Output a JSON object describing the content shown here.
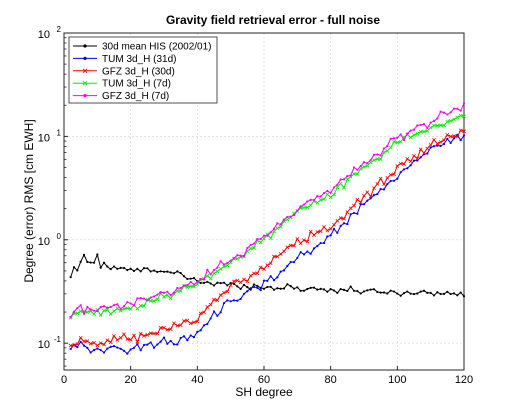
{
  "chart_data": {
    "type": "line",
    "title": "Gravity field retrieval error - full noise",
    "xlabel": "SH degree",
    "ylabel": "Degree (error) RMS [cm EWH]",
    "xlim": [
      0,
      120
    ],
    "ylim": [
      0.055,
      100
    ],
    "yscale": "log",
    "grid": true,
    "legend_position": "top-left",
    "x_ticks": [
      "0",
      "20",
      "40",
      "60",
      "80",
      "100",
      "120"
    ],
    "y_ticks": [
      {
        "base": "10",
        "exp": "-1",
        "value": 0.1
      },
      {
        "base": "10",
        "exp": "0",
        "value": 1
      },
      {
        "base": "10",
        "exp": "1",
        "value": 10
      },
      {
        "base": "10",
        "exp": "2",
        "value": 100
      }
    ],
    "series": [
      {
        "name": "30d mean HIS (2002/01)",
        "color": "#000000",
        "marker": "dot",
        "anchors": [
          [
            2,
            0.42
          ],
          [
            3,
            0.55
          ],
          [
            4,
            0.48
          ],
          [
            5,
            0.62
          ],
          [
            6,
            0.7
          ],
          [
            7,
            0.6
          ],
          [
            8,
            0.65
          ],
          [
            9,
            0.6
          ],
          [
            10,
            0.72
          ],
          [
            11,
            0.55
          ],
          [
            12,
            0.6
          ],
          [
            14,
            0.52
          ],
          [
            16,
            0.55
          ],
          [
            18,
            0.52
          ],
          [
            20,
            0.5
          ],
          [
            25,
            0.52
          ],
          [
            30,
            0.5
          ],
          [
            35,
            0.45
          ],
          [
            40,
            0.4
          ],
          [
            45,
            0.38
          ],
          [
            50,
            0.37
          ],
          [
            55,
            0.36
          ],
          [
            60,
            0.35
          ],
          [
            70,
            0.34
          ],
          [
            80,
            0.33
          ],
          [
            90,
            0.32
          ],
          [
            100,
            0.31
          ],
          [
            110,
            0.31
          ],
          [
            120,
            0.29
          ]
        ],
        "jitter": 0.025
      },
      {
        "name": "TUM 3d_H (31d)",
        "color": "#0000ff",
        "marker": "dot",
        "anchors": [
          [
            2,
            0.09
          ],
          [
            5,
            0.1
          ],
          [
            10,
            0.085
          ],
          [
            20,
            0.09
          ],
          [
            30,
            0.1
          ],
          [
            40,
            0.12
          ],
          [
            45,
            0.18
          ],
          [
            50,
            0.25
          ],
          [
            60,
            0.38
          ],
          [
            70,
            0.65
          ],
          [
            80,
            1.1
          ],
          [
            90,
            2.2
          ],
          [
            100,
            4.2
          ],
          [
            110,
            7.5
          ],
          [
            120,
            10.5
          ]
        ],
        "jitter": 0.035
      },
      {
        "name": "GFZ 3d_H (30d)",
        "color": "#ff0000",
        "marker": "x",
        "anchors": [
          [
            2,
            0.095
          ],
          [
            5,
            0.11
          ],
          [
            10,
            0.1
          ],
          [
            20,
            0.11
          ],
          [
            30,
            0.13
          ],
          [
            40,
            0.17
          ],
          [
            45,
            0.25
          ],
          [
            50,
            0.35
          ],
          [
            60,
            0.55
          ],
          [
            70,
            0.95
          ],
          [
            80,
            1.3
          ],
          [
            90,
            2.6
          ],
          [
            100,
            5.0
          ],
          [
            110,
            8.0
          ],
          [
            120,
            11.0
          ]
        ],
        "jitter": 0.035
      },
      {
        "name": "TUM 3d_H (7d)",
        "color": "#00ee00",
        "marker": "x",
        "anchors": [
          [
            2,
            0.17
          ],
          [
            5,
            0.2
          ],
          [
            10,
            0.2
          ],
          [
            20,
            0.22
          ],
          [
            30,
            0.28
          ],
          [
            40,
            0.38
          ],
          [
            50,
            0.6
          ],
          [
            60,
            1.0
          ],
          [
            70,
            1.9
          ],
          [
            80,
            2.8
          ],
          [
            90,
            5.0
          ],
          [
            100,
            8.5
          ],
          [
            110,
            12.0
          ],
          [
            120,
            16.0
          ]
        ],
        "jitter": 0.03
      },
      {
        "name": "GFZ 3d_H (7d)",
        "color": "#ff00ff",
        "marker": "dot",
        "anchors": [
          [
            2,
            0.2
          ],
          [
            5,
            0.22
          ],
          [
            10,
            0.21
          ],
          [
            20,
            0.25
          ],
          [
            30,
            0.3
          ],
          [
            40,
            0.4
          ],
          [
            50,
            0.65
          ],
          [
            60,
            1.05
          ],
          [
            70,
            2.0
          ],
          [
            80,
            3.0
          ],
          [
            90,
            5.5
          ],
          [
            100,
            9.5
          ],
          [
            110,
            14.0
          ],
          [
            120,
            19.0
          ]
        ],
        "jitter": 0.035
      }
    ]
  }
}
